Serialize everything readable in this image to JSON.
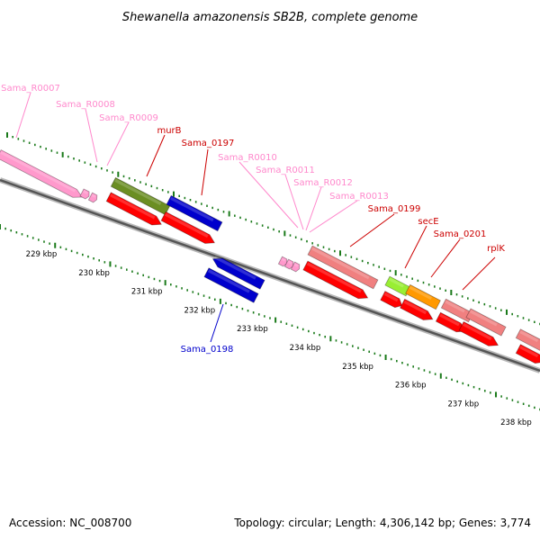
{
  "title": "Shewanella amazonensis SB2B, complete genome",
  "footer": {
    "accession": "Accession: NC_008700",
    "stats": "Topology: circular; Length: 4,306,142 bp; Genes: 3,774"
  },
  "colors": {
    "backbone": "#7a7a7a",
    "tick": "#1a7a1a",
    "cds_forward": "#ff0000",
    "rrna_trna_label": "#ff88cc",
    "gene_label": "#cc0000",
    "blue_feature": "#0000cc",
    "pink_feature": "#ff99cc",
    "olive_feature": "#6b8e23",
    "salmon_feature": "#f08080",
    "lime_feature": "#99ee33",
    "orange_feature": "#ff9900"
  },
  "scale_labels": [
    "229 kbp",
    "230 kbp",
    "231 kbp",
    "232 kbp",
    "233 kbp",
    "234 kbp",
    "235 kbp",
    "236 kbp",
    "237 kbp",
    "238 kbp"
  ],
  "feature_labels": [
    {
      "text": "Sama_R0007",
      "color": "pink"
    },
    {
      "text": "Sama_R0008",
      "color": "pink"
    },
    {
      "text": "Sama_R0009",
      "color": "pink"
    },
    {
      "text": "murB",
      "color": "red"
    },
    {
      "text": "Sama_0197",
      "color": "red"
    },
    {
      "text": "Sama_R0010",
      "color": "pink"
    },
    {
      "text": "Sama_R0011",
      "color": "pink"
    },
    {
      "text": "Sama_R0012",
      "color": "pink"
    },
    {
      "text": "Sama_R0013",
      "color": "pink"
    },
    {
      "text": "Sama_0199",
      "color": "red"
    },
    {
      "text": "secE",
      "color": "red"
    },
    {
      "text": "Sama_0201",
      "color": "red"
    },
    {
      "text": "rplK",
      "color": "red"
    },
    {
      "text": "Sama_0198",
      "color": "blue"
    }
  ]
}
